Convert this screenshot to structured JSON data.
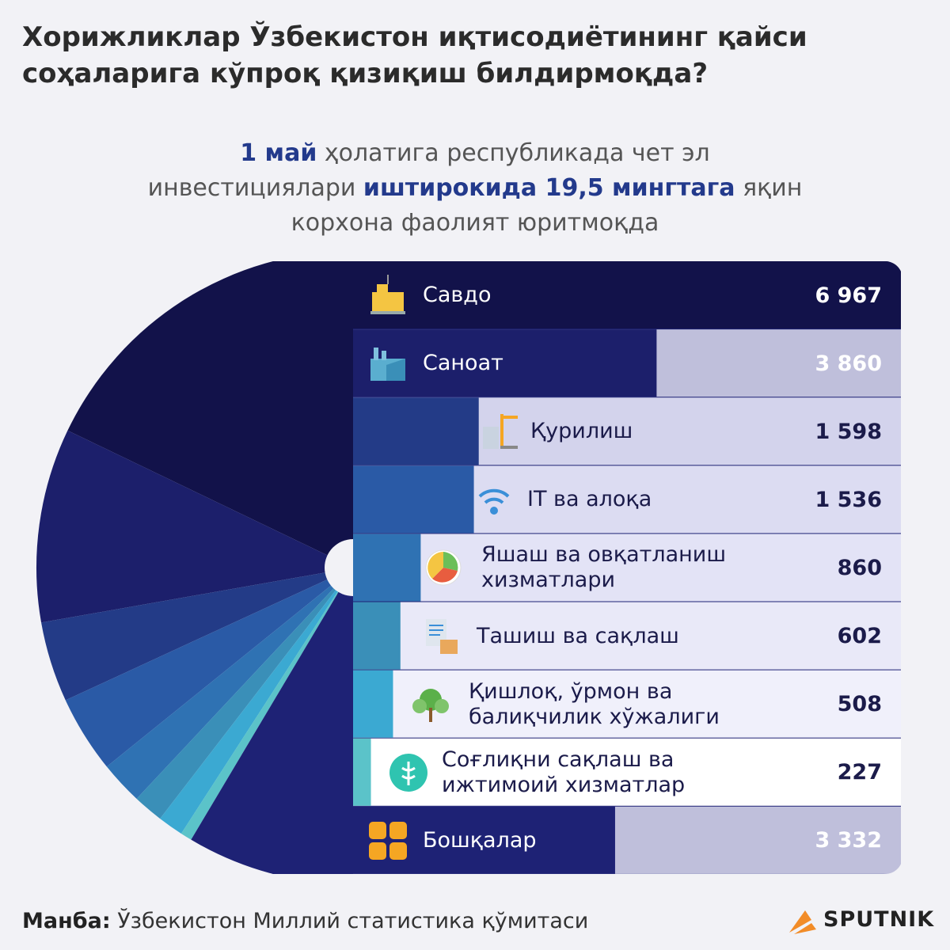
{
  "header": {
    "title": "Хорижликлар Ўзбекистон иқтисодиётининг қайси соҳаларига кўпроқ қизиқиш билдирмоқда?",
    "subtitle_1_bold": "1 май",
    "subtitle_1_text": " ҳолатига республикада чет эл",
    "subtitle_2_text": "инвестициялари ",
    "subtitle_2_bold": "иштирокида 19,5 мингтага",
    "subtitle_2_tail": " яқин",
    "subtitle_3_text": "корхона фаолият юритмоқда"
  },
  "chart_data": {
    "type": "pie",
    "categories": [
      "Савдо",
      "Саноат",
      "Қурилиш",
      "IT ва алоқа",
      "Яшаш ва овқатланиш хизматлари",
      "Ташиш ва сақлаш",
      "Қишлоқ, ўрмон ва балиқчилик хўжалиги",
      "Соғлиқни сақлаш ва ижтимоий хизматлар",
      "Бошқалар"
    ],
    "values": [
      6967,
      3860,
      1598,
      1536,
      860,
      602,
      508,
      227,
      3332
    ],
    "value_labels": [
      "6 967",
      "3 860",
      "1 598",
      "1 536",
      "860",
      "602",
      "508",
      "227",
      "3 332"
    ],
    "colors": [
      "#12124a",
      "#1c1f6b",
      "#233b87",
      "#2a5aa6",
      "#2f72b3",
      "#3a8fb8",
      "#3ba9d2",
      "#5bc3c9",
      "#1e2275"
    ],
    "track_colors": [
      "#12124a",
      "#bfbfdb",
      "#d3d3ec",
      "#dcdcf2",
      "#e3e3f6",
      "#e9e9f8",
      "#f0f0fb",
      "#ffffff",
      "#bfbfdb"
    ]
  },
  "icons": [
    "warehouse-boxes-icon",
    "factory-icon",
    "construction-crane-icon",
    "wifi-icon",
    "food-plate-icon",
    "document-box-icon",
    "trees-icon",
    "medical-icon",
    "grid-icon"
  ],
  "footer": {
    "source_label": "Манба:",
    "source_text": " Ўзбекистон Миллий статистика қўмитаси",
    "brand": "SPUTNIK"
  }
}
